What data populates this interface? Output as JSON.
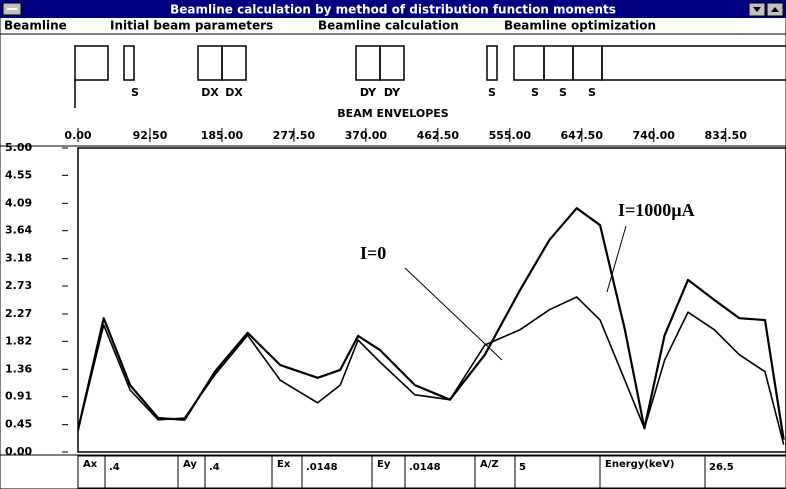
{
  "window": {
    "title": "Beamline calculation by method  of distribution function moments",
    "menu": [
      "Beamline",
      "Initial beam parameters",
      "Beamline calculation",
      "Beamline optimization"
    ]
  },
  "beamline": {
    "elements": [
      "S",
      "DX",
      "DX",
      "DY",
      "DY",
      "S",
      "S",
      "S",
      "S"
    ],
    "caption": "BEAM ENVELOPES"
  },
  "chart_data": {
    "type": "line",
    "x": [
      0,
      33,
      67,
      103,
      137,
      176,
      218,
      260,
      308,
      337,
      360,
      388,
      433,
      478,
      523,
      568,
      606,
      641,
      671,
      703,
      728,
      754,
      784,
      818,
      850,
      883,
      899,
      907
    ],
    "series": [
      {
        "name": "I=1000µA",
        "color": "#000000",
        "values": [
          0.36,
          2.2,
          1.1,
          0.56,
          0.53,
          1.32,
          1.96,
          1.43,
          1.22,
          1.35,
          1.91,
          1.68,
          1.1,
          0.86,
          1.6,
          2.66,
          3.49,
          4.01,
          3.73,
          2.01,
          0.39,
          1.92,
          2.83,
          2.5,
          2.2,
          2.17,
          0.86,
          0.2
        ]
      },
      {
        "name": "I=0",
        "color": "#000000",
        "values": [
          0.36,
          2.09,
          1.02,
          0.53,
          0.56,
          1.27,
          1.92,
          1.18,
          0.81,
          1.1,
          1.84,
          1.48,
          0.94,
          0.86,
          1.76,
          2.01,
          2.34,
          2.55,
          2.17,
          1.18,
          0.39,
          1.51,
          2.3,
          2.01,
          1.6,
          1.32,
          0.53,
          0.12
        ]
      }
    ],
    "xlim": [
      0,
      910
    ],
    "xticks": [
      {
        "value": 0,
        "label": "0.00"
      },
      {
        "value": 92.5,
        "label": "92.50"
      },
      {
        "value": 185,
        "label": "185.00"
      },
      {
        "value": 277.5,
        "label": "277.50"
      },
      {
        "value": 370,
        "label": "370.00"
      },
      {
        "value": 462.5,
        "label": "462.50"
      },
      {
        "value": 555,
        "label": "555.00"
      },
      {
        "value": 647.5,
        "label": "647.50"
      },
      {
        "value": 740,
        "label": "740.00"
      },
      {
        "value": 832.5,
        "label": "832.50"
      }
    ],
    "ylim": [
      0,
      5
    ],
    "yticks": [
      {
        "value": 0,
        "label": "0.00"
      },
      0.45,
      0.91,
      1.36,
      1.82,
      2.27,
      2.73,
      3.18,
      3.64,
      4.09,
      4.55,
      {
        "value": 5,
        "label": "5.00"
      }
    ]
  },
  "fields": [
    {
      "label": "Ax",
      "value": ".4"
    },
    {
      "label": "Ay",
      "value": ".4"
    },
    {
      "label": "Ex",
      "value": ".0148"
    },
    {
      "label": "Ey",
      "value": ".0148"
    },
    {
      "label": "A/Z",
      "value": "5"
    },
    {
      "label": "Energy(keV)",
      "value": "26.5"
    }
  ]
}
